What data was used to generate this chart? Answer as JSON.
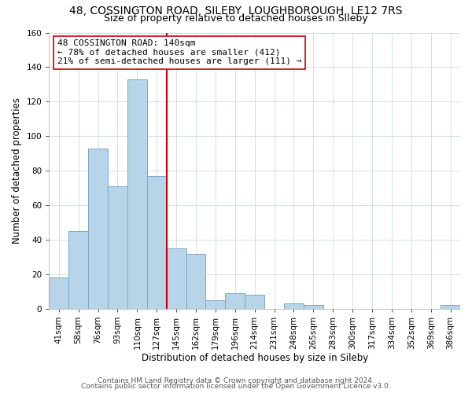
{
  "title": "48, COSSINGTON ROAD, SILEBY, LOUGHBOROUGH, LE12 7RS",
  "subtitle": "Size of property relative to detached houses in Sileby",
  "xlabel": "Distribution of detached houses by size in Sileby",
  "ylabel": "Number of detached properties",
  "categories": [
    "41sqm",
    "58sqm",
    "76sqm",
    "93sqm",
    "110sqm",
    "127sqm",
    "145sqm",
    "162sqm",
    "179sqm",
    "196sqm",
    "214sqm",
    "231sqm",
    "248sqm",
    "265sqm",
    "283sqm",
    "300sqm",
    "317sqm",
    "334sqm",
    "352sqm",
    "369sqm",
    "386sqm"
  ],
  "values": [
    18,
    45,
    93,
    71,
    133,
    77,
    35,
    32,
    5,
    9,
    8,
    0,
    3,
    2,
    0,
    0,
    0,
    0,
    0,
    0,
    2
  ],
  "bar_color": "#b8d4e8",
  "bar_edge_color": "#7aaac8",
  "property_line_x": 5.5,
  "property_line_color": "#cc0000",
  "annotation_line1": "48 COSSINGTON ROAD: 140sqm",
  "annotation_line2": "← 78% of detached houses are smaller (412)",
  "annotation_line3": "21% of semi-detached houses are larger (111) →",
  "annotation_box_color": "#ffffff",
  "annotation_box_edge_color": "#cc0000",
  "ylim": [
    0,
    160
  ],
  "yticks": [
    0,
    20,
    40,
    60,
    80,
    100,
    120,
    140,
    160
  ],
  "footer1": "Contains HM Land Registry data © Crown copyright and database right 2024.",
  "footer2": "Contains public sector information licensed under the Open Government Licence v3.0.",
  "background_color": "#ffffff",
  "grid_color": "#ccd9e8",
  "title_fontsize": 10,
  "subtitle_fontsize": 9,
  "axis_label_fontsize": 8.5,
  "tick_fontsize": 7.5,
  "annotation_fontsize": 8,
  "footer_fontsize": 6.5
}
